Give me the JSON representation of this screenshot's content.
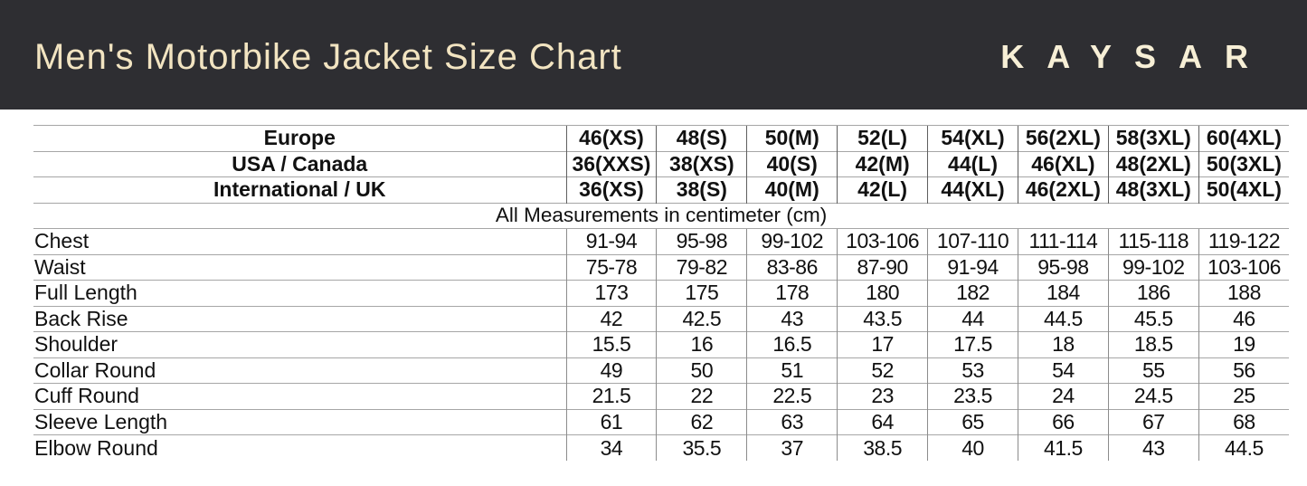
{
  "header": {
    "title": "Men's Motorbike Jacket Size Chart",
    "brand": "KAYSAR"
  },
  "colors": {
    "header_bg": "#2e2e32",
    "title_text": "#f2e4c1",
    "logo_text": "#f7efd6",
    "grid_line": "#a6a6a6"
  },
  "chart_data": {
    "type": "table",
    "title": "Men's Motorbike Jacket Size Chart",
    "unit_note": "All Measurements in centimeter (cm)",
    "size_rows": [
      {
        "label": "Europe",
        "values": [
          "46(XS)",
          "48(S)",
          "50(M)",
          "52(L)",
          "54(XL)",
          "56(2XL)",
          "58(3XL)",
          "60(4XL)"
        ]
      },
      {
        "label": "USA / Canada",
        "values": [
          "36(XXS)",
          "38(XS)",
          "40(S)",
          "42(M)",
          "44(L)",
          "46(XL)",
          "48(2XL)",
          "50(3XL)"
        ]
      },
      {
        "label": "International / UK",
        "values": [
          "36(XS)",
          "38(S)",
          "40(M)",
          "42(L)",
          "44(XL)",
          "46(2XL)",
          "48(3XL)",
          "50(4XL)"
        ]
      }
    ],
    "measurement_rows": [
      {
        "label": "Chest",
        "values": [
          "91-94",
          "95-98",
          "99-102",
          "103-106",
          "107-110",
          "111-114",
          "115-118",
          "119-122"
        ]
      },
      {
        "label": "Waist",
        "values": [
          "75-78",
          "79-82",
          "83-86",
          "87-90",
          "91-94",
          "95-98",
          "99-102",
          "103-106"
        ]
      },
      {
        "label": "Full Length",
        "values": [
          "173",
          "175",
          "178",
          "180",
          "182",
          "184",
          "186",
          "188"
        ]
      },
      {
        "label": "Back Rise",
        "values": [
          "42",
          "42.5",
          "43",
          "43.5",
          "44",
          "44.5",
          "45.5",
          "46"
        ]
      },
      {
        "label": "Shoulder",
        "values": [
          "15.5",
          "16",
          "16.5",
          "17",
          "17.5",
          "18",
          "18.5",
          "19"
        ]
      },
      {
        "label": "Collar Round",
        "values": [
          "49",
          "50",
          "51",
          "52",
          "53",
          "54",
          "55",
          "56"
        ]
      },
      {
        "label": "Cuff Round",
        "values": [
          "21.5",
          "22",
          "22.5",
          "23",
          "23.5",
          "24",
          "24.5",
          "25"
        ]
      },
      {
        "label": "Sleeve Length",
        "values": [
          "61",
          "62",
          "63",
          "64",
          "65",
          "66",
          "67",
          "68"
        ]
      },
      {
        "label": "Elbow Round",
        "values": [
          "34",
          "35.5",
          "37",
          "38.5",
          "40",
          "41.5",
          "43",
          "44.5"
        ]
      }
    ]
  }
}
